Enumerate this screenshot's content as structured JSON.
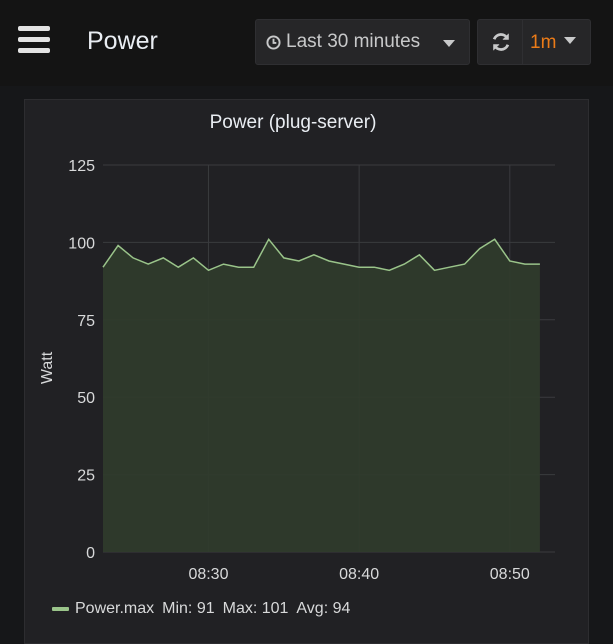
{
  "header": {
    "title": "Power",
    "time_range": "Last 30 minutes",
    "refresh_interval": "1m"
  },
  "icons": {
    "menu": "hamburger-menu-icon",
    "clock": "clock-icon",
    "refresh": "refresh-icon",
    "dropdown": "chevron-down-icon"
  },
  "colors": {
    "series_line": "#9ac48a",
    "series_fill": "#2f3b2c",
    "refresh_accent": "#eb7b18"
  },
  "panel": {
    "title": "Power (plug-server)"
  },
  "chart_data": {
    "type": "area",
    "title": "Power (plug-server)",
    "xlabel": "",
    "ylabel": "Watt",
    "ylim": [
      0,
      125
    ],
    "yticks": [
      "0",
      "25",
      "50",
      "75",
      "100",
      "125"
    ],
    "xticks": [
      "08:30",
      "08:40",
      "08:50"
    ],
    "grid": true,
    "legend_position": "bottom-left",
    "series": [
      {
        "name": "Power.max",
        "x": [
          "08:23",
          "08:24",
          "08:25",
          "08:26",
          "08:27",
          "08:28",
          "08:29",
          "08:30",
          "08:31",
          "08:32",
          "08:33",
          "08:34",
          "08:35",
          "08:36",
          "08:37",
          "08:38",
          "08:39",
          "08:40",
          "08:41",
          "08:42",
          "08:43",
          "08:44",
          "08:45",
          "08:46",
          "08:47",
          "08:48",
          "08:49",
          "08:50",
          "08:51",
          "08:52"
        ],
        "values": [
          92,
          99,
          95,
          93,
          95,
          92,
          95,
          91,
          93,
          92,
          92,
          101,
          95,
          94,
          96,
          94,
          93,
          92,
          92,
          91,
          93,
          96,
          91,
          92,
          93,
          98,
          101,
          94,
          93,
          93
        ]
      }
    ]
  },
  "legend": {
    "series_name": "Power.max",
    "min": "Min: 91",
    "max": "Max: 101",
    "avg": "Avg: 94"
  }
}
